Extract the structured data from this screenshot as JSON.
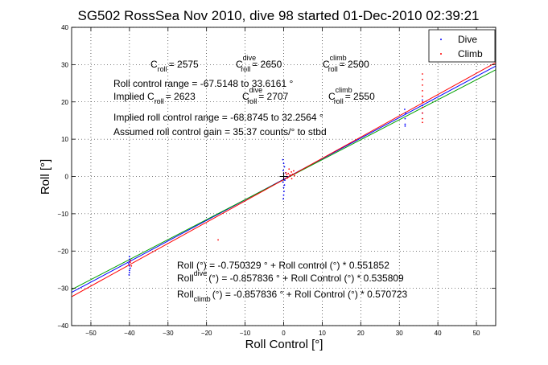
{
  "chart_data": {
    "type": "scatter",
    "title": "SG502 RossSea Nov 2010, dive 98 started 01-Dec-2010 02:39:21",
    "xlabel": "Roll Control [°]",
    "ylabel": "Roll [°]",
    "xlim": [
      -55,
      55
    ],
    "ylim": [
      -40,
      40
    ],
    "xticks": [
      -50,
      -40,
      -30,
      -20,
      -10,
      0,
      10,
      20,
      30,
      40,
      50
    ],
    "yticks": [
      -40,
      -30,
      -20,
      -10,
      0,
      10,
      20,
      30,
      40
    ],
    "grid": true,
    "legend_position": "top-right",
    "colors": {
      "dive": "#0000ff",
      "climb": "#ff0000",
      "fit_all": "#0000ff",
      "fit_dive": "#00a000",
      "fit_climb": "#ff0000",
      "axis": "#000000"
    },
    "legend": [
      {
        "label": "Dive",
        "color": "#0000ff"
      },
      {
        "label": "Climb",
        "color": "#ff0000"
      }
    ],
    "series": [
      {
        "name": "Dive",
        "points": [
          [
            -40,
            -21.5
          ],
          [
            -40,
            -22.2
          ],
          [
            -40,
            -22.8
          ],
          [
            -40.2,
            -23.4
          ],
          [
            -40,
            -24
          ],
          [
            -39.8,
            -24.6
          ],
          [
            -40,
            -25.2
          ],
          [
            -40,
            -25.8
          ],
          [
            -40.1,
            -26.4
          ],
          [
            -39.9,
            -23
          ],
          [
            -0.2,
            4.5
          ],
          [
            0,
            3.5
          ],
          [
            0.2,
            2.6
          ],
          [
            -0.1,
            1.6
          ],
          [
            0,
            0.8
          ],
          [
            0.1,
            0
          ],
          [
            0,
            -0.8
          ],
          [
            -0.2,
            -1.5
          ],
          [
            0.2,
            -2.3
          ],
          [
            0,
            -3
          ],
          [
            0.1,
            -4
          ],
          [
            0,
            -5
          ],
          [
            -0.1,
            -6
          ],
          [
            0.3,
            -1
          ],
          [
            0.5,
            1
          ],
          [
            31.5,
            14
          ],
          [
            31.5,
            15.5
          ],
          [
            31.6,
            17
          ],
          [
            31.4,
            18
          ],
          [
            31.5,
            13.5
          ],
          [
            36,
            17
          ],
          [
            36,
            19
          ],
          [
            36,
            20.5
          ]
        ]
      },
      {
        "name": "Climb",
        "points": [
          [
            -39.8,
            -23
          ],
          [
            -39.5,
            -24
          ],
          [
            -39.7,
            -22.5
          ],
          [
            -17,
            -17
          ],
          [
            1.2,
            0.8
          ],
          [
            1.6,
            0.4
          ],
          [
            2,
            1.2
          ],
          [
            2.3,
            0.6
          ],
          [
            2.6,
            1.5
          ],
          [
            1,
            -0.4
          ],
          [
            0.8,
            0.5
          ],
          [
            2.8,
            0.2
          ],
          [
            1.4,
            2
          ],
          [
            2.1,
            -0.6
          ],
          [
            0.6,
            1
          ],
          [
            36,
            14.5
          ],
          [
            36,
            15.5
          ],
          [
            36,
            17
          ],
          [
            36,
            18.5
          ],
          [
            36,
            20
          ],
          [
            36,
            21.5
          ],
          [
            36,
            23
          ],
          [
            36,
            24.5
          ],
          [
            36,
            26
          ],
          [
            36,
            27.5
          ]
        ]
      }
    ],
    "fit_lines": [
      {
        "name": "all",
        "intercept": -0.750329,
        "slope": 0.551852,
        "color": "#0000ff"
      },
      {
        "name": "dive",
        "intercept": -0.857836,
        "slope": 0.535809,
        "color": "#00a000"
      },
      {
        "name": "climb",
        "intercept": -0.857836,
        "slope": 0.570723,
        "color": "#ff0000"
      }
    ],
    "markers": [
      [
        0,
        0
      ]
    ]
  },
  "annotations": {
    "c_roll": {
      "main": "C",
      "sub": "roll",
      "value": "= 2575"
    },
    "c_roll_dive": {
      "main": "C",
      "sup": "dive",
      "sub": "roll",
      "value": "= 2650"
    },
    "c_roll_climb": {
      "main": "C",
      "sup": "climb",
      "sub": "roll",
      "value": "= 2500"
    },
    "range": "Roll control range = -67.5148 to 33.6161 °",
    "implied_c": {
      "main": "Implied C",
      "sub": "roll",
      "value": "= 2623"
    },
    "implied_c_dive": {
      "main": "C",
      "sup": "dive",
      "sub": "roll",
      "value": "= 2707"
    },
    "implied_c_climb": {
      "main": "C",
      "sup": "climb",
      "sub": "roll",
      "value": "= 2550"
    },
    "implied_range": "Implied roll control range = -68.8745 to 32.2564 °",
    "gain": "Assumed roll control gain = 35.37 counts/° to stbd",
    "eq_all": "Roll (°) = -0.750329 ° + Roll control (°) * 0.551852",
    "eq_dive": {
      "main": "Roll",
      "sub": "dive",
      "rest": "(°) = -0.857836 ° + Roll Control (°) * 0.535809"
    },
    "eq_climb": {
      "main": "Roll",
      "sub": "climb",
      "rest": "(°) = -0.857836 ° + Roll Control (°) * 0.570723"
    }
  }
}
